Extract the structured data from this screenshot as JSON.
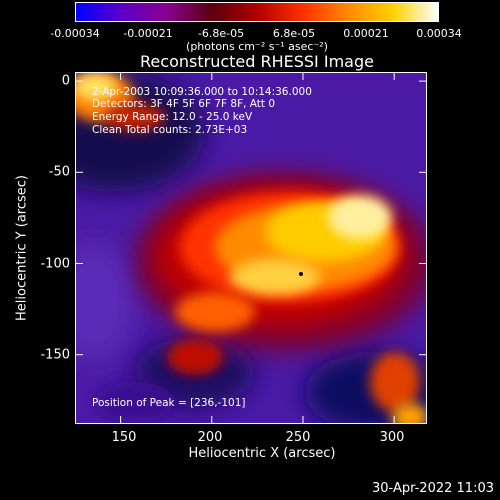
{
  "colorbar": {
    "tick_labels": [
      "-0.00034",
      "-0.00021",
      "-6.8e-05",
      "6.8e-05",
      "0.00021",
      "0.00034"
    ],
    "tick_values": [
      -0.00034,
      -0.00021,
      -6.8e-05,
      6.8e-05,
      0.00021,
      0.00034
    ],
    "units": "(photons cm⁻² s⁻¹ asec⁻²)",
    "colors": [
      "#0000ff",
      "#5b00c8",
      "#8a0090",
      "#5a0010",
      "#b00000",
      "#ff3000",
      "#ff8800",
      "#ffd000",
      "#ffffff"
    ]
  },
  "chart_data": {
    "type": "heatmap",
    "title": "Reconstructed RHESSI Image",
    "xlabel": "Heliocentric X (arcsec)",
    "ylabel": "Heliocentric Y (arcsec)",
    "xlim": [
      125,
      318
    ],
    "ylim": [
      -188,
      5
    ],
    "x_ticks": [
      150,
      200,
      250,
      300
    ],
    "y_ticks": [
      0,
      -50,
      -100,
      -150
    ],
    "zlim": [
      -0.00034,
      0.00034
    ],
    "peak": [
      236,
      -101
    ],
    "annotations": [
      "2-Apr-2003 10:09:36.000 to 10:14:36.000",
      "Detectors: 3F 4F 5F 6F 7F 8F, Att 0",
      "Energy Range: 12.0 - 25.0 keV",
      "Clean     Total counts: 2.73E+03",
      "Position of Peak = [236,-101]"
    ]
  },
  "footer": {
    "timestamp": "30-Apr-2022 11:03"
  }
}
